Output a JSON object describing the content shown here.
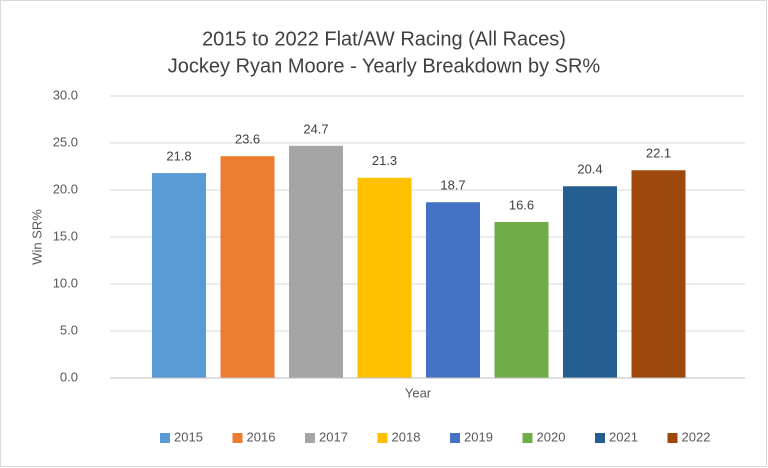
{
  "chart_data": {
    "type": "bar",
    "title": "2015 to 2022 Flat/AW Racing (All Races)",
    "subtitle": "Jockey Ryan Moore - Yearly Breakdown by SR%",
    "x_label": "Year",
    "y_label": "Win SR%",
    "categories": [
      null
    ],
    "series": [
      {
        "name": "2015",
        "color": "#5b9bd5",
        "values": [
          21.8
        ]
      },
      {
        "name": "2016",
        "color": "#ed7d31",
        "values": [
          23.6
        ]
      },
      {
        "name": "2017",
        "color": "#a5a5a5",
        "values": [
          24.7
        ]
      },
      {
        "name": "2018",
        "color": "#ffc000",
        "values": [
          21.3
        ]
      },
      {
        "name": "2019",
        "color": "#4472c4",
        "values": [
          18.7
        ]
      },
      {
        "name": "2020",
        "color": "#70ad47",
        "values": [
          16.6
        ]
      },
      {
        "name": "2021",
        "color": "#255e91",
        "values": [
          20.4
        ]
      },
      {
        "name": "2022",
        "color": "#9e480e",
        "values": [
          22.1
        ]
      }
    ],
    "ylim": [
      0,
      30
    ],
    "yticks": [
      {
        "value": 0,
        "label": "0.0"
      },
      {
        "value": 5,
        "label": "5.0"
      },
      {
        "value": 10,
        "label": "10.0"
      },
      {
        "value": 15,
        "label": "15.0"
      },
      {
        "value": 20,
        "label": "20.0"
      },
      {
        "value": 25,
        "label": "25.0"
      },
      {
        "value": 30,
        "label": "30.0"
      }
    ],
    "grid": true,
    "legend": "bottom"
  }
}
